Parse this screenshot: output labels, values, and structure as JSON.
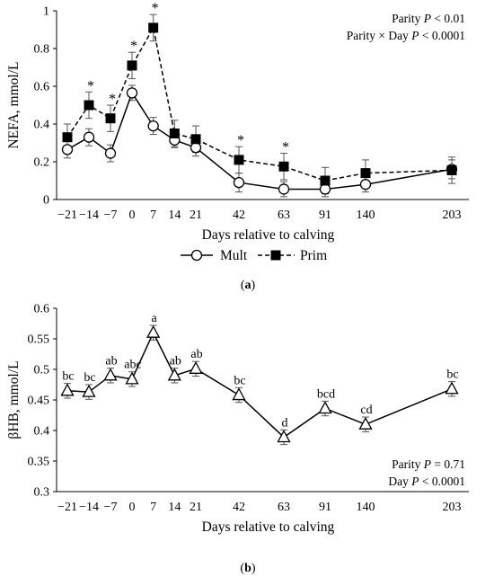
{
  "chart_data": [
    {
      "type": "line",
      "panel_label": "(a)",
      "ylabel": "NEFA, mmol/L",
      "xlabel": "Days relative to calving",
      "ylim": [
        0,
        1
      ],
      "yticks": [
        "0",
        "0.2",
        "0.4",
        "0.6",
        "0.8",
        "1"
      ],
      "x_categories": [
        "−21",
        "−14",
        "−7",
        "0",
        "7",
        "14",
        "21",
        "42",
        "63",
        "91",
        "140",
        "203"
      ],
      "x": [
        -21,
        -14,
        -7,
        0,
        7,
        14,
        21,
        42,
        63,
        91,
        140,
        203
      ],
      "legend_position": "bottom",
      "annotation_lines": [
        "Parity P < 0.01",
        "Parity × Day P < 0.0001"
      ],
      "star_label": "*",
      "series": [
        {
          "name": "Mult",
          "marker": "circle-open",
          "line": "solid",
          "values": [
            0.265,
            0.33,
            0.245,
            0.565,
            0.39,
            0.315,
            0.275,
            0.09,
            0.055,
            0.055,
            0.08,
            0.16
          ],
          "error": [
            0.045,
            0.045,
            0.045,
            0.04,
            0.045,
            0.04,
            0.045,
            0.05,
            0.04,
            0.04,
            0.04,
            0.05
          ]
        },
        {
          "name": "Prim",
          "marker": "square-filled",
          "line": "dashed",
          "values": [
            0.33,
            0.5,
            0.43,
            0.71,
            0.91,
            0.35,
            0.32,
            0.21,
            0.175,
            0.1,
            0.14,
            0.155
          ],
          "error": [
            0.07,
            0.07,
            0.07,
            0.07,
            0.07,
            0.07,
            0.07,
            0.07,
            0.07,
            0.07,
            0.07,
            0.07
          ]
        }
      ],
      "significant_days": [
        -14,
        -7,
        0,
        7,
        42,
        63
      ]
    },
    {
      "type": "line",
      "panel_label": "(b)",
      "ylabel": "βHB, mmol/L",
      "xlabel": "Days relative to calving",
      "ylim": [
        0.3,
        0.6
      ],
      "yticks": [
        "0.3",
        "0.35",
        "0.4",
        "0.45",
        "0.5",
        "0.55",
        "0.6"
      ],
      "x_categories": [
        "−21",
        "−14",
        "−7",
        "0",
        "7",
        "14",
        "21",
        "42",
        "63",
        "91",
        "140",
        "203"
      ],
      "x": [
        -21,
        -14,
        -7,
        0,
        7,
        14,
        21,
        42,
        63,
        91,
        140,
        203
      ],
      "annotation_lines": [
        "Parity P = 0.71",
        "Day P < 0.0001"
      ],
      "series": [
        {
          "marker": "triangle-open",
          "line": "solid",
          "values": [
            0.465,
            0.463,
            0.49,
            0.484,
            0.56,
            0.49,
            0.501,
            0.458,
            0.389,
            0.436,
            0.41,
            0.468
          ],
          "error": [
            0.012,
            0.012,
            0.012,
            0.012,
            0.012,
            0.012,
            0.012,
            0.012,
            0.012,
            0.012,
            0.012,
            0.012
          ],
          "letters": [
            "bc",
            "bc",
            "ab",
            "abc",
            "a",
            "ab",
            "ab",
            "bc",
            "d",
            "bcd",
            "cd",
            "bc"
          ]
        }
      ]
    }
  ]
}
